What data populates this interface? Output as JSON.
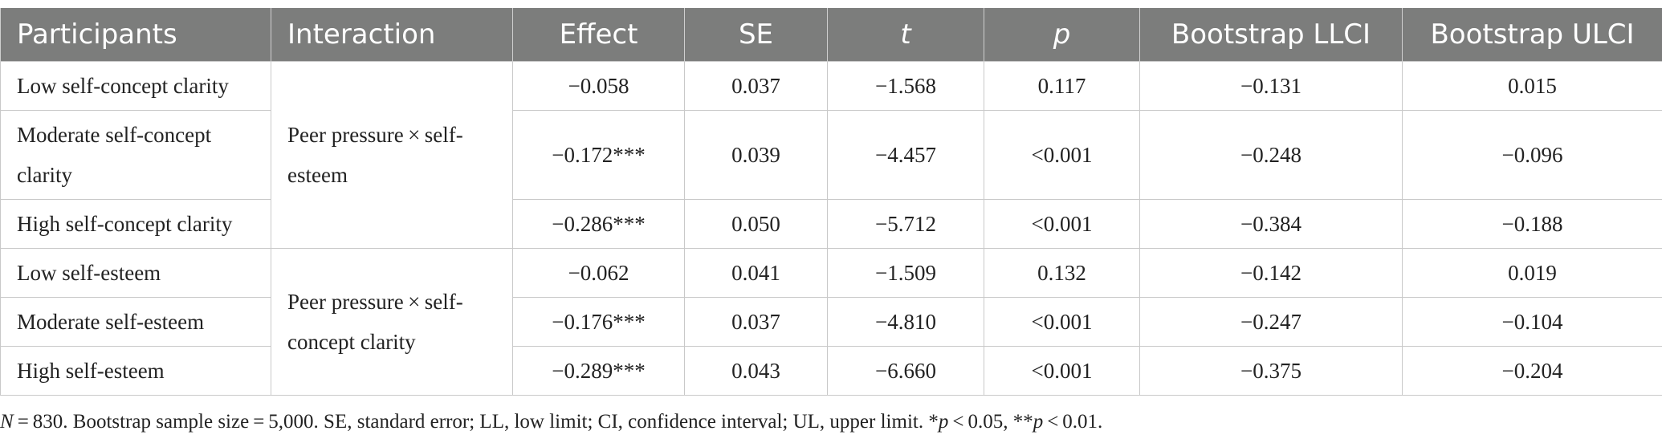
{
  "table": {
    "headers": [
      "Participants",
      "Interaction",
      "Effect",
      "SE",
      "t",
      "p",
      "Bootstrap LLCI",
      "Bootstrap ULCI"
    ],
    "groups": [
      {
        "interaction": "Peer pressure × self-esteem",
        "rows": [
          {
            "participants": "Low self-concept clarity",
            "effect": "−0.058",
            "se": "0.037",
            "t": "−1.568",
            "p": "0.117",
            "llci": "−0.131",
            "ulci": "0.015"
          },
          {
            "participants": "Moderate self-concept clarity",
            "effect": "−0.172***",
            "se": "0.039",
            "t": "−4.457",
            "p": "<0.001",
            "llci": "−0.248",
            "ulci": "−0.096"
          },
          {
            "participants": "High self-concept clarity",
            "effect": "−0.286***",
            "se": "0.050",
            "t": "−5.712",
            "p": "<0.001",
            "llci": "−0.384",
            "ulci": "−0.188"
          }
        ]
      },
      {
        "interaction": "Peer pressure × self-concept clarity",
        "rows": [
          {
            "participants": "Low self-esteem",
            "effect": "−0.062",
            "se": "0.041",
            "t": "−1.509",
            "p": "0.132",
            "llci": "−0.142",
            "ulci": "0.019"
          },
          {
            "participants": "Moderate self-esteem",
            "effect": "−0.176***",
            "se": "0.037",
            "t": "−4.810",
            "p": "<0.001",
            "llci": "−0.247",
            "ulci": "−0.104"
          },
          {
            "participants": "High self-esteem",
            "effect": "−0.289***",
            "se": "0.043",
            "t": "−6.660",
            "p": "<0.001",
            "llci": "−0.375",
            "ulci": "−0.204"
          }
        ]
      }
    ]
  },
  "footnote": {
    "n_symbol": "N",
    "n_text": " = 830. Bootstrap sample size = 5,000. SE, standard error; LL, low limit; CI, confidence interval; UL, upper limit. *",
    "p1": "p",
    "p1_text": " < 0.05, **",
    "p2": "p",
    "p2_text": " < 0.01."
  },
  "colors": {
    "header_bg": "#7c7d7c",
    "header_text": "#ffffff",
    "border": "#c9c9c9"
  }
}
